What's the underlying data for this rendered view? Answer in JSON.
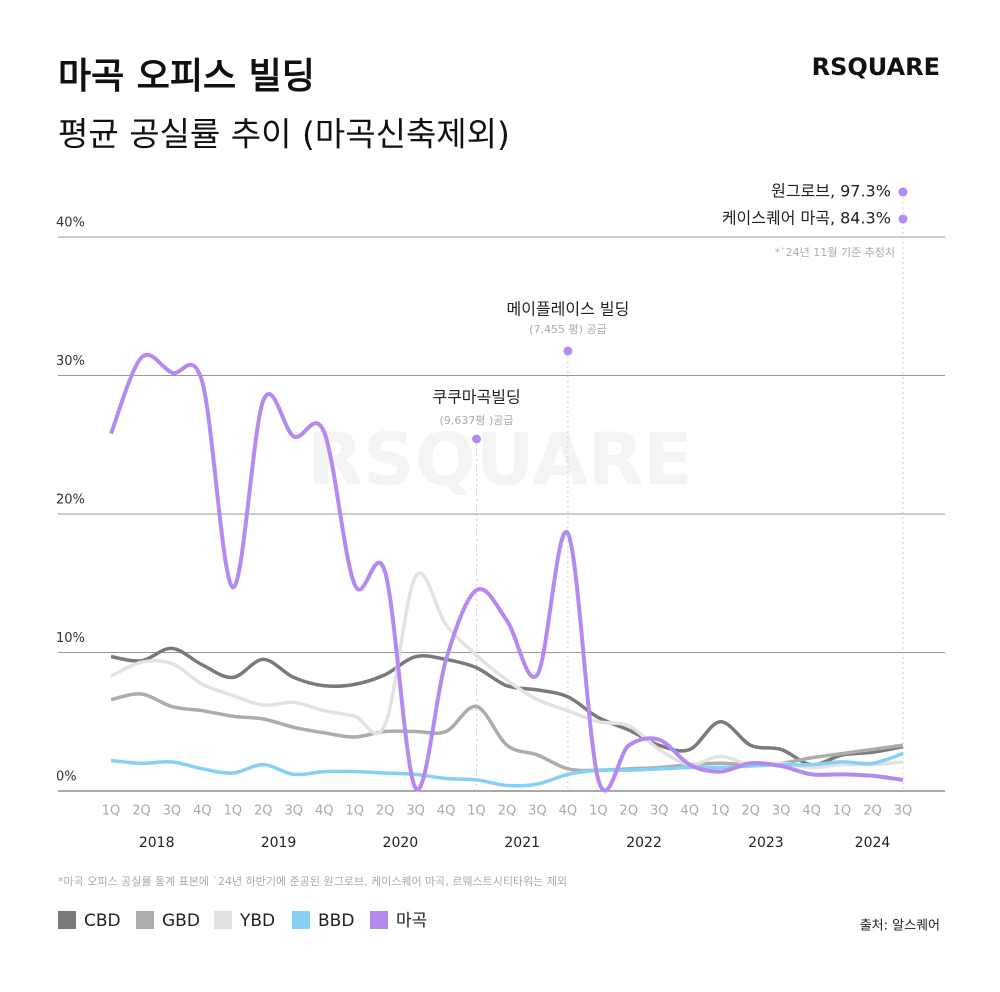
{
  "chart_data": {
    "type": "line",
    "title": "마곡 오피스 빌딩",
    "subtitle": "평균 공실률 추이 (마곡신축제외)",
    "logo": "RSQUARE",
    "categories": [
      "1Q",
      "2Q",
      "3Q",
      "4Q",
      "1Q",
      "2Q",
      "3Q",
      "4Q",
      "1Q",
      "2Q",
      "3Q",
      "4Q",
      "1Q",
      "2Q",
      "3Q",
      "4Q",
      "1Q",
      "2Q",
      "3Q",
      "4Q",
      "1Q",
      "2Q",
      "3Q",
      "4Q",
      "1Q",
      "2Q",
      "3Q"
    ],
    "years": [
      "2018",
      "2019",
      "2020",
      "2021",
      "2022",
      "2023",
      "2024"
    ],
    "ylim": [
      0,
      40
    ],
    "yticks": [
      {
        "value": 0,
        "label": "0%"
      },
      {
        "value": 10,
        "label": "10%"
      },
      {
        "value": 20,
        "label": "20%"
      },
      {
        "value": 30,
        "label": "30%"
      },
      {
        "value": 40,
        "label": "40%"
      }
    ],
    "grid": true,
    "series": [
      {
        "name": "CBD",
        "color": "#7a7a7a",
        "values": [
          9.7,
          9.4,
          10.3,
          9.1,
          8.2,
          9.5,
          8.2,
          7.6,
          7.7,
          8.4,
          9.7,
          9.5,
          8.9,
          7.6,
          7.3,
          6.8,
          5.3,
          4.4,
          3.3,
          3.0,
          5.0,
          3.3,
          3.0,
          1.9,
          2.6,
          2.8,
          3.2
        ]
      },
      {
        "name": "GBD",
        "color": "#acacac",
        "values": [
          6.6,
          7.0,
          6.1,
          5.8,
          5.4,
          5.2,
          4.6,
          4.2,
          3.9,
          4.3,
          4.3,
          4.3,
          6.1,
          3.3,
          2.6,
          1.6,
          1.5,
          1.6,
          1.7,
          1.9,
          2.0,
          1.9,
          2.0,
          2.4,
          2.7,
          3.0,
          3.3
        ]
      },
      {
        "name": "YBD",
        "color": "#e2e2e2",
        "values": [
          8.3,
          9.3,
          9.2,
          7.7,
          6.9,
          6.2,
          6.4,
          5.8,
          5.4,
          4.8,
          15.5,
          12.0,
          9.8,
          8.0,
          6.6,
          5.8,
          5.0,
          4.7,
          3.0,
          1.9,
          2.5,
          1.9,
          2.0,
          1.7,
          1.9,
          1.9,
          2.1
        ]
      },
      {
        "name": "BBD",
        "color": "#86d0f5",
        "values": [
          2.2,
          2.0,
          2.1,
          1.6,
          1.3,
          1.9,
          1.2,
          1.4,
          1.4,
          1.3,
          1.2,
          0.9,
          0.8,
          0.4,
          0.5,
          1.2,
          1.5,
          1.5,
          1.6,
          1.7,
          1.7,
          1.8,
          1.9,
          1.9,
          2.1,
          2.0,
          2.7
        ]
      },
      {
        "name": "마곡",
        "color": "#b48af0",
        "values": [
          25.8,
          31.3,
          30.2,
          29.5,
          14.7,
          28.2,
          25.6,
          25.9,
          14.9,
          15.8,
          0.2,
          9.5,
          14.5,
          12.3,
          8.4,
          18.6,
          0.8,
          3.3,
          3.7,
          1.9,
          1.4,
          2.0,
          1.8,
          1.2,
          1.2,
          1.1,
          0.8
        ]
      }
    ],
    "annotations": [
      {
        "title": "쿠쿠마곡빌딩",
        "sub": "(9,637평 )공급"
      },
      {
        "title": "메이플레이스 빌딩",
        "sub": "(7,455 평) 공급"
      },
      {
        "title": "원그로브, 97.3%"
      },
      {
        "title": "케이스퀘어 마곡, 84.3%"
      }
    ],
    "estimate_note": "*`24년 11월 기준 추정치",
    "footnote": "*마곡 오피스 공실률 통계 표본에 `24년 하반기에 준공된 원그로브, 케이스퀘어 마곡, 르웨스트시티타워는 제외",
    "source": "출처: 알스퀘어"
  }
}
